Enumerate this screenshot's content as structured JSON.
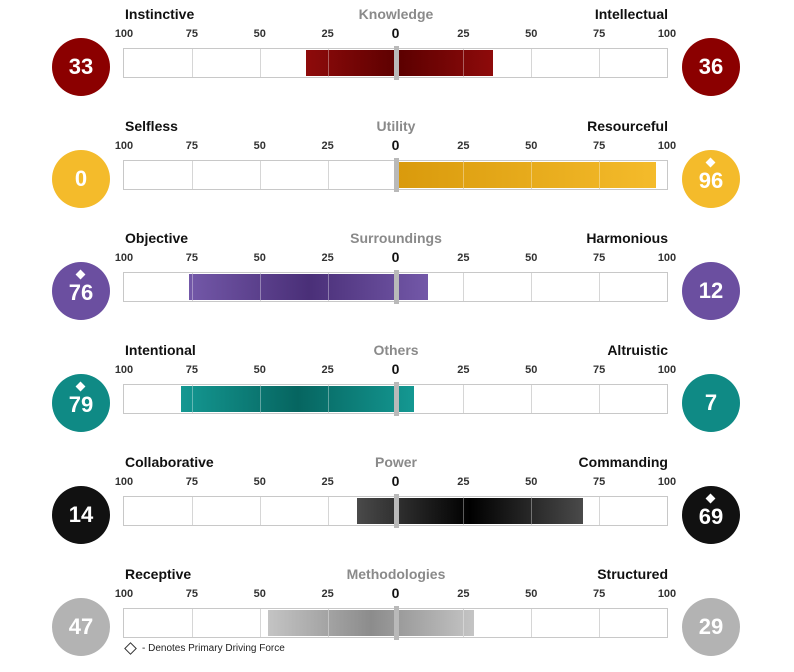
{
  "chart_data": {
    "type": "bar",
    "axis_ticks": [
      "100",
      "75",
      "50",
      "25",
      "0",
      "25",
      "50",
      "75",
      "100"
    ],
    "xlim": [
      -100,
      100
    ],
    "grid": true,
    "rows": [
      {
        "title": "Knowledge",
        "left_label": "Instinctive",
        "right_label": "Intellectual",
        "left_value": 33,
        "right_value": 36,
        "left_display": "33",
        "right_display": "36",
        "primary": "none",
        "color": "#8b0000",
        "color_dark": "#5c0000",
        "color_light": "#8e0b0b"
      },
      {
        "title": "Utility",
        "left_label": "Selfless",
        "right_label": "Resourceful",
        "left_value": 0,
        "right_value": 96,
        "left_display": "0",
        "right_display": "96",
        "primary": "right",
        "color": "#f4bb2b",
        "color_dark": "#d99a0c",
        "color_light": "#f7c338"
      },
      {
        "title": "Surroundings",
        "left_label": "Objective",
        "right_label": "Harmonious",
        "left_value": 76,
        "right_value": 12,
        "left_display": "76",
        "right_display": "12",
        "primary": "left",
        "color": "#6b4fa0",
        "color_dark": "#4a2f78",
        "color_light": "#7358a8"
      },
      {
        "title": "Others",
        "left_label": "Intentional",
        "right_label": "Altruistic",
        "left_value": 79,
        "right_value": 7,
        "left_display": "79",
        "right_display": "7",
        "primary": "left",
        "color": "#0f8a85",
        "color_dark": "#066560",
        "color_light": "#149892"
      },
      {
        "title": "Power",
        "left_label": "Collaborative",
        "right_label": "Commanding",
        "left_value": 14,
        "right_value": 69,
        "left_display": "14",
        "right_display": "69",
        "primary": "right",
        "color": "#111111",
        "color_dark": "#000000",
        "color_light": "#4a4a4a"
      },
      {
        "title": "Methodologies",
        "left_label": "Receptive",
        "right_label": "Structured",
        "left_value": 47,
        "right_value": 29,
        "left_display": "47",
        "right_display": "29",
        "primary": "none",
        "color": "#b3b3b3",
        "color_dark": "#8c8c8c",
        "color_light": "#c4c4c4"
      }
    ]
  },
  "legend": {
    "text": "- Denotes Primary Driving Force"
  }
}
